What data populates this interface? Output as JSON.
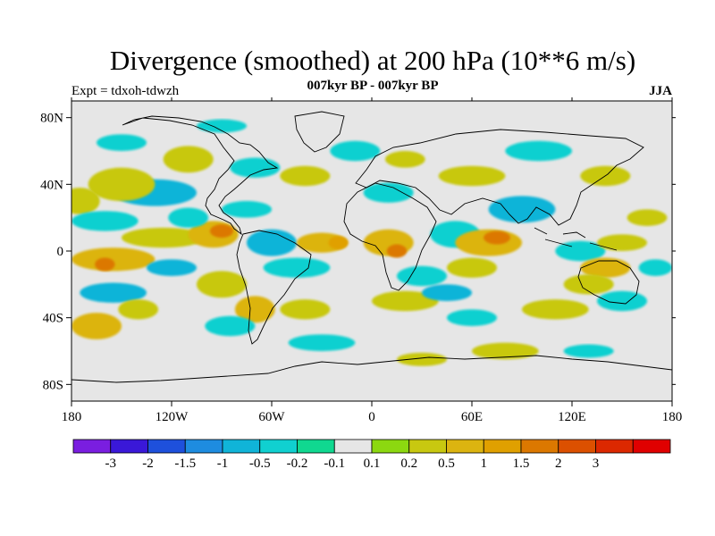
{
  "header": {
    "title": "Divergence (smoothed) at 200 hPa (10**6 m/s)",
    "subtitle": "007kyr BP - 007kyr BP",
    "experiment": "Expt = tdxoh-tdwzh",
    "season": "JJA"
  },
  "map": {
    "lon_range": [
      -180,
      180
    ],
    "lat_range": [
      -90,
      90
    ],
    "background_color": "#e6e6e6",
    "lat_ticks": [
      {
        "lat": 80,
        "label": "80N"
      },
      {
        "lat": 40,
        "label": "40N"
      },
      {
        "lat": 0,
        "label": "0"
      },
      {
        "lat": -40,
        "label": "40S"
      },
      {
        "lat": -80,
        "label": "80S"
      }
    ],
    "lon_ticks": [
      {
        "lon": -180,
        "label": "180"
      },
      {
        "lon": -120,
        "label": "120W"
      },
      {
        "lon": -60,
        "label": "60W"
      },
      {
        "lon": 0,
        "label": "0"
      },
      {
        "lon": 60,
        "label": "60E"
      },
      {
        "lon": 120,
        "label": "120E"
      },
      {
        "lon": 180,
        "label": "180"
      }
    ]
  },
  "colorbar": {
    "colors": [
      "#7a1ee0",
      "#3a18d8",
      "#1e50dc",
      "#1e8ce0",
      "#10b4d8",
      "#10d0d0",
      "#10d890",
      "#e6e6e6",
      "#8cd810",
      "#c8c810",
      "#dcb410",
      "#e0a000",
      "#dc7800",
      "#dc5000",
      "#dc2800",
      "#e00000"
    ],
    "labels": [
      "-3",
      "-2",
      "-1.5",
      "-1",
      "-0.5",
      "-0.2",
      "-0.1",
      "0.1",
      "0.2",
      "0.5",
      "1",
      "1.5",
      "2",
      "3"
    ]
  },
  "field_blobs": [
    {
      "lon": -130,
      "lat": 35,
      "rx": 25,
      "ry": 8,
      "level": 4
    },
    {
      "lon": -150,
      "lat": 40,
      "rx": 20,
      "ry": 10,
      "level": 9
    },
    {
      "lon": -175,
      "lat": 30,
      "rx": 12,
      "ry": 8,
      "level": 9
    },
    {
      "lon": -160,
      "lat": 18,
      "rx": 20,
      "ry": 6,
      "level": 5
    },
    {
      "lon": -125,
      "lat": 8,
      "rx": 25,
      "ry": 6,
      "level": 9
    },
    {
      "lon": -155,
      "lat": -5,
      "rx": 25,
      "ry": 7,
      "level": 10
    },
    {
      "lon": -160,
      "lat": -8,
      "rx": 6,
      "ry": 4,
      "level": 12
    },
    {
      "lon": -120,
      "lat": -10,
      "rx": 15,
      "ry": 5,
      "level": 4
    },
    {
      "lon": -155,
      "lat": -25,
      "rx": 20,
      "ry": 6,
      "level": 4
    },
    {
      "lon": -165,
      "lat": -45,
      "rx": 15,
      "ry": 8,
      "level": 10
    },
    {
      "lon": -140,
      "lat": -35,
      "rx": 12,
      "ry": 6,
      "level": 9
    },
    {
      "lon": -95,
      "lat": 10,
      "rx": 15,
      "ry": 8,
      "level": 10
    },
    {
      "lon": -90,
      "lat": 12,
      "rx": 7,
      "ry": 4,
      "level": 12
    },
    {
      "lon": -110,
      "lat": 20,
      "rx": 12,
      "ry": 6,
      "level": 5
    },
    {
      "lon": -75,
      "lat": 25,
      "rx": 15,
      "ry": 5,
      "level": 5
    },
    {
      "lon": -60,
      "lat": 5,
      "rx": 15,
      "ry": 8,
      "level": 4
    },
    {
      "lon": -45,
      "lat": -10,
      "rx": 20,
      "ry": 6,
      "level": 5
    },
    {
      "lon": -90,
      "lat": -20,
      "rx": 15,
      "ry": 8,
      "level": 9
    },
    {
      "lon": -70,
      "lat": -35,
      "rx": 12,
      "ry": 8,
      "level": 10
    },
    {
      "lon": -85,
      "lat": -45,
      "rx": 15,
      "ry": 6,
      "level": 5
    },
    {
      "lon": -40,
      "lat": -35,
      "rx": 15,
      "ry": 6,
      "level": 9
    },
    {
      "lon": -30,
      "lat": -55,
      "rx": 20,
      "ry": 5,
      "level": 5
    },
    {
      "lon": -30,
      "lat": 5,
      "rx": 15,
      "ry": 6,
      "level": 10
    },
    {
      "lon": -20,
      "lat": 5,
      "rx": 6,
      "ry": 4,
      "level": 11
    },
    {
      "lon": -40,
      "lat": 45,
      "rx": 15,
      "ry": 6,
      "level": 9
    },
    {
      "lon": -70,
      "lat": 50,
      "rx": 15,
      "ry": 6,
      "level": 5
    },
    {
      "lon": -110,
      "lat": 55,
      "rx": 15,
      "ry": 8,
      "level": 9
    },
    {
      "lon": -150,
      "lat": 65,
      "rx": 15,
      "ry": 5,
      "level": 5
    },
    {
      "lon": -90,
      "lat": 75,
      "rx": 15,
      "ry": 4,
      "level": 5
    },
    {
      "lon": -10,
      "lat": 60,
      "rx": 15,
      "ry": 6,
      "level": 5
    },
    {
      "lon": 10,
      "lat": 35,
      "rx": 15,
      "ry": 6,
      "level": 5
    },
    {
      "lon": 20,
      "lat": 55,
      "rx": 12,
      "ry": 5,
      "level": 9
    },
    {
      "lon": 10,
      "lat": 5,
      "rx": 15,
      "ry": 8,
      "level": 10
    },
    {
      "lon": 15,
      "lat": 0,
      "rx": 6,
      "ry": 4,
      "level": 12
    },
    {
      "lon": 30,
      "lat": -15,
      "rx": 15,
      "ry": 6,
      "level": 5
    },
    {
      "lon": 20,
      "lat": -30,
      "rx": 20,
      "ry": 6,
      "level": 9
    },
    {
      "lon": 45,
      "lat": -25,
      "rx": 15,
      "ry": 5,
      "level": 4
    },
    {
      "lon": 50,
      "lat": 10,
      "rx": 15,
      "ry": 8,
      "level": 5
    },
    {
      "lon": 70,
      "lat": 5,
      "rx": 20,
      "ry": 8,
      "level": 10
    },
    {
      "lon": 75,
      "lat": 8,
      "rx": 8,
      "ry": 4,
      "level": 12
    },
    {
      "lon": 60,
      "lat": -10,
      "rx": 15,
      "ry": 6,
      "level": 9
    },
    {
      "lon": 90,
      "lat": 25,
      "rx": 20,
      "ry": 8,
      "level": 4
    },
    {
      "lon": 60,
      "lat": 45,
      "rx": 20,
      "ry": 6,
      "level": 9
    },
    {
      "lon": 100,
      "lat": 60,
      "rx": 20,
      "ry": 6,
      "level": 5
    },
    {
      "lon": 140,
      "lat": 45,
      "rx": 15,
      "ry": 6,
      "level": 9
    },
    {
      "lon": 125,
      "lat": 0,
      "rx": 15,
      "ry": 6,
      "level": 5
    },
    {
      "lon": 140,
      "lat": -10,
      "rx": 15,
      "ry": 6,
      "level": 10
    },
    {
      "lon": 130,
      "lat": -20,
      "rx": 15,
      "ry": 6,
      "level": 9
    },
    {
      "lon": 150,
      "lat": 5,
      "rx": 15,
      "ry": 5,
      "level": 9
    },
    {
      "lon": 165,
      "lat": 20,
      "rx": 12,
      "ry": 5,
      "level": 9
    },
    {
      "lon": 110,
      "lat": -35,
      "rx": 20,
      "ry": 6,
      "level": 9
    },
    {
      "lon": 150,
      "lat": -30,
      "rx": 15,
      "ry": 6,
      "level": 5
    },
    {
      "lon": 170,
      "lat": -10,
      "rx": 10,
      "ry": 5,
      "level": 5
    },
    {
      "lon": 60,
      "lat": -40,
      "rx": 15,
      "ry": 5,
      "level": 5
    },
    {
      "lon": 80,
      "lat": -60,
      "rx": 20,
      "ry": 5,
      "level": 9
    },
    {
      "lon": 130,
      "lat": -60,
      "rx": 15,
      "ry": 4,
      "level": 5
    },
    {
      "lon": 30,
      "lat": -65,
      "rx": 15,
      "ry": 4,
      "level": 9
    }
  ]
}
